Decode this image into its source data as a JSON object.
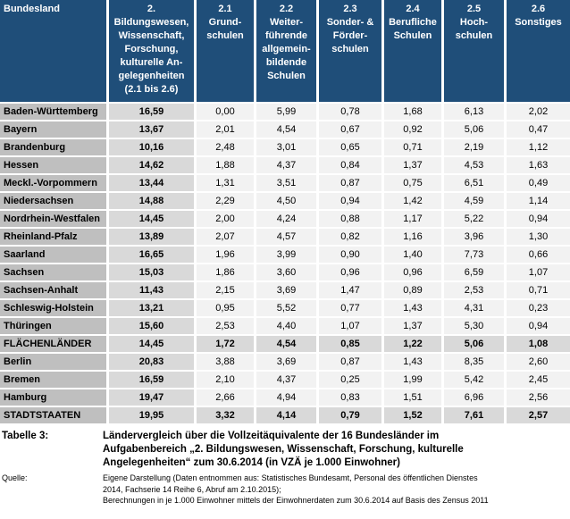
{
  "chart_data": {
    "type": "table",
    "title": "Tabelle 3: Ländervergleich über die Vollzeitäquivalente der 16 Bundesländer im Aufgabenbereich „2. Bildungswesen, Wissenschaft, Forschung, kulturelle Angelegenheiten“ zum 30.6.2014 (in VZÄ je 1.000 Einwohner)",
    "columns": [
      "Bundesland",
      "2.\nBildungswesen,\nWissenschaft,\nForschung,\nkulturelle An-\ngelegenheiten\n(2.1 bis 2.6)",
      "2.1\nGrund-\nschulen",
      "2.2\nWeiter-\nführende\nallgemein-\nbildende\nSchulen",
      "2.3\nSonder- &\nFörder-\nschulen",
      "2.4\nBerufliche\nSchulen",
      "2.5\nHoch-\nschulen",
      "2.6\nSonstiges"
    ],
    "rows": [
      {
        "name": "Baden-Württemberg",
        "summary": false,
        "values": [
          "16,59",
          "0,00",
          "5,99",
          "0,78",
          "1,68",
          "6,13",
          "2,02"
        ]
      },
      {
        "name": "Bayern",
        "summary": false,
        "values": [
          "13,67",
          "2,01",
          "4,54",
          "0,67",
          "0,92",
          "5,06",
          "0,47"
        ]
      },
      {
        "name": "Brandenburg",
        "summary": false,
        "values": [
          "10,16",
          "2,48",
          "3,01",
          "0,65",
          "0,71",
          "2,19",
          "1,12"
        ]
      },
      {
        "name": "Hessen",
        "summary": false,
        "values": [
          "14,62",
          "1,88",
          "4,37",
          "0,84",
          "1,37",
          "4,53",
          "1,63"
        ]
      },
      {
        "name": "Meckl.-Vorpommern",
        "summary": false,
        "values": [
          "13,44",
          "1,31",
          "3,51",
          "0,87",
          "0,75",
          "6,51",
          "0,49"
        ]
      },
      {
        "name": "Niedersachsen",
        "summary": false,
        "values": [
          "14,88",
          "2,29",
          "4,50",
          "0,94",
          "1,42",
          "4,59",
          "1,14"
        ]
      },
      {
        "name": "Nordrhein-Westfalen",
        "summary": false,
        "values": [
          "14,45",
          "2,00",
          "4,24",
          "0,88",
          "1,17",
          "5,22",
          "0,94"
        ]
      },
      {
        "name": "Rheinland-Pfalz",
        "summary": false,
        "values": [
          "13,89",
          "2,07",
          "4,57",
          "0,82",
          "1,16",
          "3,96",
          "1,30"
        ]
      },
      {
        "name": "Saarland",
        "summary": false,
        "values": [
          "16,65",
          "1,96",
          "3,99",
          "0,90",
          "1,40",
          "7,73",
          "0,66"
        ]
      },
      {
        "name": "Sachsen",
        "summary": false,
        "values": [
          "15,03",
          "1,86",
          "3,60",
          "0,96",
          "0,96",
          "6,59",
          "1,07"
        ]
      },
      {
        "name": "Sachsen-Anhalt",
        "summary": false,
        "values": [
          "11,43",
          "2,15",
          "3,69",
          "1,47",
          "0,89",
          "2,53",
          "0,71"
        ]
      },
      {
        "name": "Schleswig-Holstein",
        "summary": false,
        "values": [
          "13,21",
          "0,95",
          "5,52",
          "0,77",
          "1,43",
          "4,31",
          "0,23"
        ]
      },
      {
        "name": "Thüringen",
        "summary": false,
        "values": [
          "15,60",
          "2,53",
          "4,40",
          "1,07",
          "1,37",
          "5,30",
          "0,94"
        ]
      },
      {
        "name": "FLÄCHENLÄNDER",
        "summary": true,
        "values": [
          "14,45",
          "1,72",
          "4,54",
          "0,85",
          "1,22",
          "5,06",
          "1,08"
        ]
      },
      {
        "name": "Berlin",
        "summary": false,
        "values": [
          "20,83",
          "3,88",
          "3,69",
          "0,87",
          "1,43",
          "8,35",
          "2,60"
        ]
      },
      {
        "name": "Bremen",
        "summary": false,
        "values": [
          "16,59",
          "2,10",
          "4,37",
          "0,25",
          "1,99",
          "5,42",
          "2,45"
        ]
      },
      {
        "name": "Hamburg",
        "summary": false,
        "values": [
          "19,47",
          "2,66",
          "4,94",
          "0,83",
          "1,51",
          "6,96",
          "2,56"
        ]
      },
      {
        "name": "STADTSTAATEN",
        "summary": true,
        "values": [
          "19,95",
          "3,32",
          "4,14",
          "0,79",
          "1,52",
          "7,61",
          "2,57"
        ]
      }
    ]
  },
  "footer": {
    "table_label": "Tabelle 3:",
    "caption": "Ländervergleich über die Vollzeitäquivalente der 16 Bundesländer im\nAufgabenbereich „2. Bildungswesen, Wissenschaft, Forschung, kulturelle\nAngelegenheiten“ zum 30.6.2014 (in VZÄ je 1.000 Einwohner)",
    "source_label": "Quelle:",
    "source": "Eigene Darstellung (Daten entnommen aus: Statistisches Bundesamt, Personal des öffentlichen Dienstes\n2014, Fachserie 14 Reihe 6, Abruf am 2.10.2015);\nBerechnungen in je 1.000  Einwohner mittels der Einwohnerdaten zum 30.6.2014  auf Basis des Zensus 2011"
  },
  "colors": {
    "header_bg": "#1f4e79",
    "header_text": "#ffffff",
    "name_column_bg": "#bfbfbf",
    "total_column_bg": "#d9d9d9",
    "value_cell_bg": "#f2f2f2",
    "summary_cell_bg": "#d9d9d9",
    "grid": "#ffffff"
  }
}
